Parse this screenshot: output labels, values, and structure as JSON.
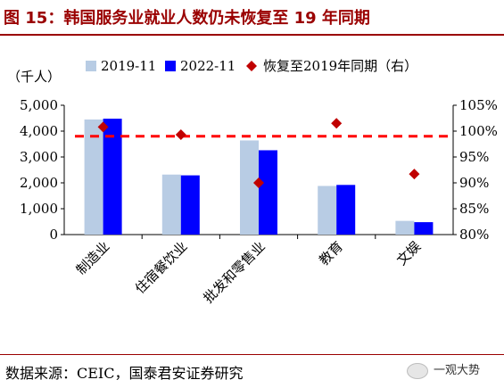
{
  "title": "图 15：韩国服务业就业人数仍未恢复至 19 年同期",
  "source": "数据来源：CEIC，国泰君安证券研究",
  "watermark": "一观大势",
  "colors": {
    "title": "#9a0000",
    "s2019": "#b8cce4",
    "s2022": "#0000ff",
    "recovery": "#c00000",
    "refline": "#ff0000"
  },
  "chart_data": {
    "type": "bar",
    "categories": [
      "制造业",
      "住宿餐饮业",
      "批发和零售业",
      "教育",
      "文娱"
    ],
    "left_axis": {
      "unit_label": "（千人）",
      "ylim": [
        0,
        5000
      ],
      "ticks": [
        "0",
        "1,000",
        "2,000",
        "3,000",
        "4,000",
        "5,000"
      ]
    },
    "right_axis": {
      "ylim": [
        80,
        105
      ],
      "ticks": [
        "80%",
        "85%",
        "90%",
        "95%",
        "100%",
        "105%"
      ]
    },
    "series": [
      {
        "name": "2019-11",
        "values": [
          4450,
          2320,
          3640,
          1880,
          530
        ]
      },
      {
        "name": "2022-11",
        "values": [
          4480,
          2290,
          3260,
          1920,
          480
        ]
      },
      {
        "name": "恢复至2019年同期（右）",
        "axis": "right",
        "values": [
          100.8,
          99.3,
          90.0,
          101.5,
          91.7
        ]
      }
    ],
    "reference_line": {
      "axis": "right",
      "value": 99
    },
    "legend": "top"
  }
}
